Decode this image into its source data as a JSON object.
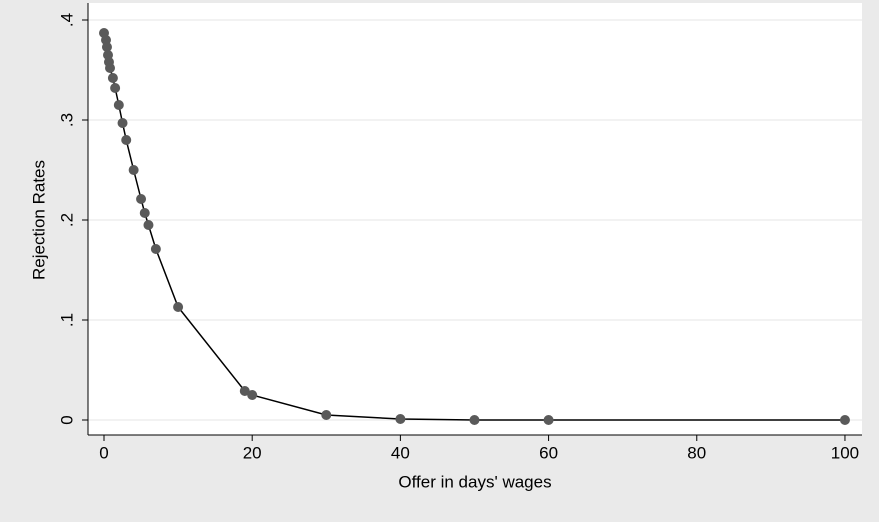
{
  "chart_data": {
    "type": "line",
    "x_label": "Offer in days' wages",
    "y_label": "Rejection Rates",
    "x": [
      0,
      0.27,
      0.4,
      0.54,
      0.67,
      0.81,
      1.2,
      1.5,
      2,
      2.5,
      3,
      4,
      5,
      5.5,
      6,
      7,
      10,
      19,
      20,
      30,
      40,
      50,
      60,
      100
    ],
    "values": [
      0.387,
      0.38,
      0.373,
      0.365,
      0.358,
      0.352,
      0.342,
      0.332,
      0.315,
      0.297,
      0.28,
      0.25,
      0.221,
      0.207,
      0.195,
      0.171,
      0.113,
      0.029,
      0.025,
      0.005,
      0.001,
      0,
      0,
      0
    ],
    "line_color": "#000000",
    "marker_color": "#5a5a5a",
    "xlim": [
      -2.16,
      102.3
    ],
    "ylim": [
      -0.015,
      0.417
    ],
    "xticks": [
      0,
      20,
      40,
      60,
      80,
      100
    ],
    "yticks": [
      0,
      {
        "value": 0.1,
        "label": ".1"
      },
      {
        "value": 0.2,
        "label": ".2"
      },
      {
        "value": 0.3,
        "label": ".3"
      },
      {
        "value": 0.4,
        "label": ".4"
      }
    ],
    "grid": true
  }
}
